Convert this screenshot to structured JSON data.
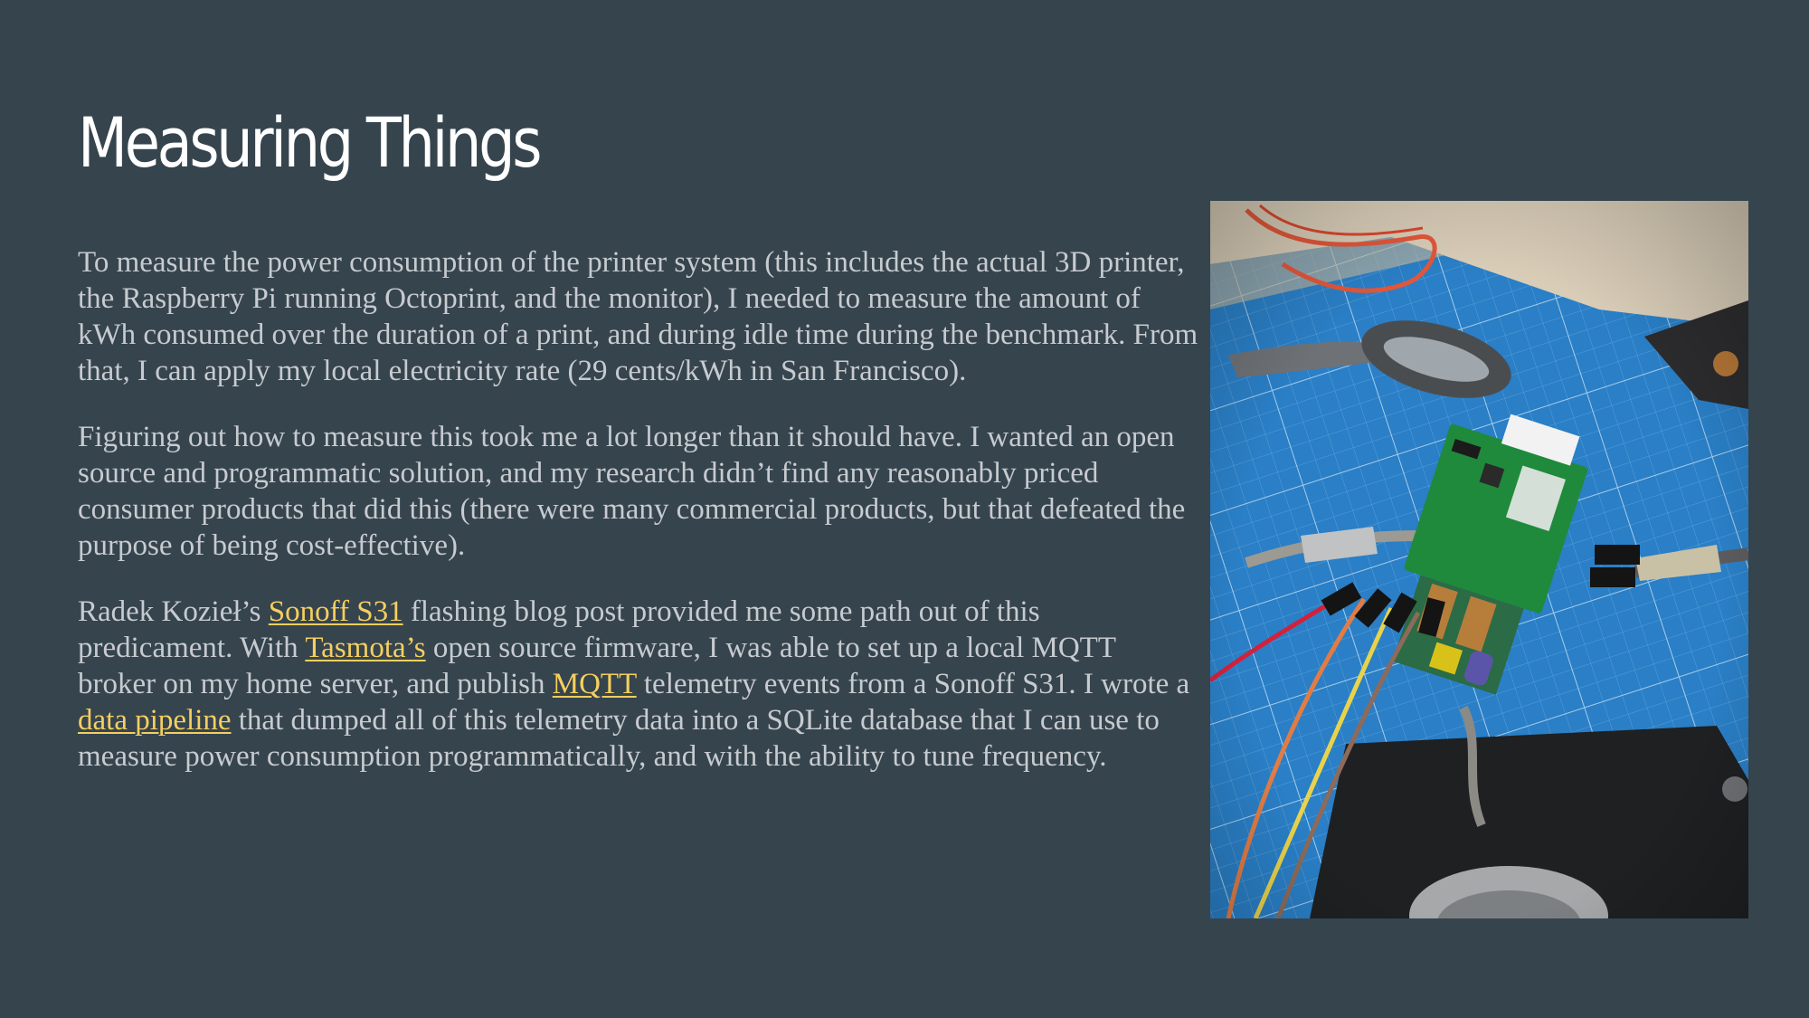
{
  "slide": {
    "title": "Measuring Things",
    "paragraphs": {
      "p1": "To measure the power consumption of the printer system (this includes the actual 3D printer, the Raspberry Pi running Octoprint, and the monitor), I needed to measure the amount of kWh consumed over the duration of a print, and during idle time during the benchmark. From that, I can apply my local electricity rate (29 cents/kWh in San Francisco).",
      "p2": "Figuring out how to measure this took me a lot longer than it should have. I wanted an open source and programmatic solution, and my research didn’t find any reasonably priced consumer products that did this (there were many commercial products, but that defeated the purpose of being cost-effective).",
      "p3": {
        "t1": "Radek Kozieł’s ",
        "link1": "Sonoff S31",
        "t2": " flashing blog post provided me some path out of this predicament. With ",
        "link2": "Tasmota’s",
        "t3": " open source firmware, I was able to set up a local MQTT broker on my home server, and publish ",
        "link3": "MQTT",
        "t4": " telemetry events from a Sonoff S31. I wrote a ",
        "link4": "data pipeline",
        "t5": " that dumped all of this telemetry data into a SQLite database that I can use to measure power consumption programmatically, and with the ability to tune frequency."
      }
    }
  },
  "colors": {
    "background": "#36444e",
    "title": "#ffffff",
    "body_text": "#c7cbcf",
    "link": "#f5cf5f",
    "cutting_mat": "#2a7fc6",
    "pcb": "#1f8a3c"
  }
}
